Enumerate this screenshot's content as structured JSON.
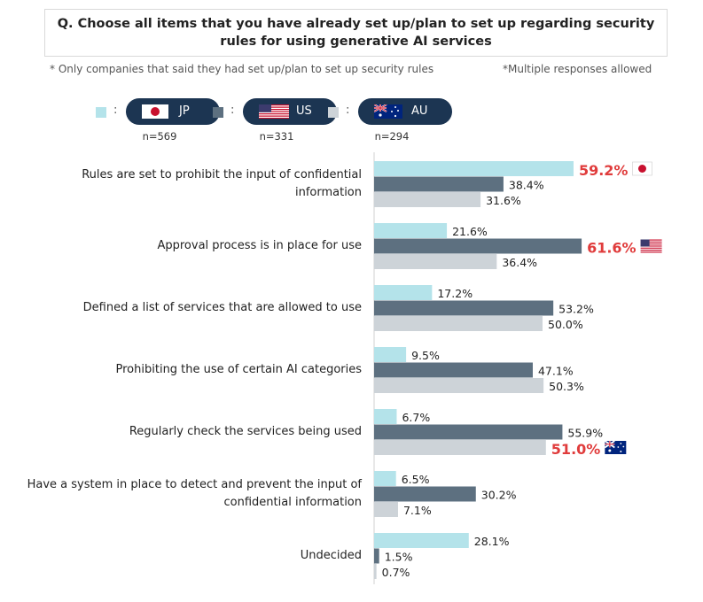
{
  "question": {
    "line1": "Q. Choose all items that you have already set up/plan to set up regarding security",
    "line2": "rules for using generative AI services"
  },
  "notes": {
    "left": "* Only companies that said they had set up/plan to set up security rules",
    "right": "*Multiple responses allowed"
  },
  "legend": [
    {
      "label": "JP",
      "n": "n=569",
      "color": "#b4e3ea",
      "flag": "japan-flag"
    },
    {
      "label": "US",
      "n": "n=331",
      "color": "#5d7080",
      "flag": "usa-flag"
    },
    {
      "label": "AU",
      "n": "n=294",
      "color": "#cdd3d8",
      "flag": "australia-flag"
    }
  ],
  "colon": ":",
  "highlight_color": "#e03c3c",
  "chart_data": {
    "type": "bar",
    "orientation": "horizontal",
    "categories": [
      [
        "Rules are set to prohibit the input of confidential",
        "information"
      ],
      [
        "Approval process is in place for use"
      ],
      [
        "Defined a list of services that are allowed to use"
      ],
      [
        "Prohibiting the use of certain AI categories"
      ],
      [
        "Regularly check the services being used"
      ],
      [
        "Have a system in place to detect and prevent the input of",
        "confidential information"
      ],
      [
        "Undecided"
      ]
    ],
    "series": [
      {
        "name": "JP",
        "color": "#b4e3ea",
        "values": [
          59.2,
          21.6,
          17.2,
          9.5,
          6.7,
          6.5,
          28.1
        ]
      },
      {
        "name": "US",
        "color": "#5d7080",
        "values": [
          38.4,
          61.6,
          53.2,
          47.1,
          55.9,
          30.2,
          1.5
        ]
      },
      {
        "name": "AU",
        "color": "#cdd3d8",
        "values": [
          31.6,
          36.4,
          50.0,
          50.3,
          51.0,
          7.1,
          0.7
        ]
      }
    ],
    "labels": [
      [
        "59.2%",
        "38.4%",
        "31.6%"
      ],
      [
        "21.6%",
        "61.6%",
        "36.4%"
      ],
      [
        "17.2%",
        "53.2%",
        "50.0%"
      ],
      [
        "9.5%",
        "47.1%",
        "50.3%"
      ],
      [
        "6.7%",
        "55.9%",
        "51.0%"
      ],
      [
        "6.5%",
        "30.2%",
        "7.1%"
      ],
      [
        "28.1%",
        "1.5%",
        "0.7%"
      ]
    ],
    "highlights": [
      {
        "category": 0,
        "series": 0,
        "flag": "japan-flag"
      },
      {
        "category": 1,
        "series": 1,
        "flag": "usa-flag"
      },
      {
        "category": 4,
        "series": 2,
        "flag": "australia-flag"
      }
    ],
    "unit": "%"
  }
}
